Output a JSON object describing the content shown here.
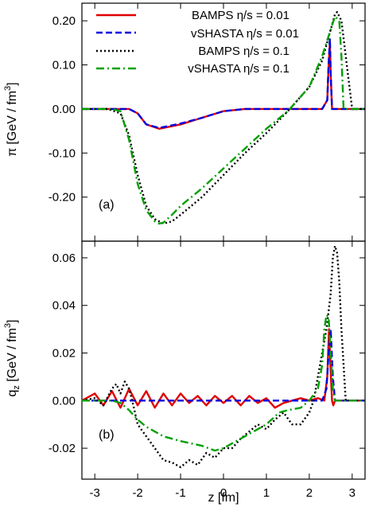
{
  "chart_data": [
    {
      "type": "line",
      "panel_label": "(a)",
      "ylabel_main": "π",
      "ylabel_unit": "[GeV / fm",
      "ylabel_exp": "3",
      "ylabel_close": "]",
      "xlim": [
        -3.3,
        3.3
      ],
      "ylim": [
        -0.3,
        0.24
      ],
      "yticks": [
        0.2,
        0.1,
        0.0,
        -0.1,
        -0.2
      ],
      "ytick_labels": [
        "0.20",
        "0.10",
        "0.00",
        "-0.10",
        "-0.20"
      ],
      "legend_position": "top",
      "grid": false,
      "series": [
        {
          "name": "BAMPS η/s = 0.01",
          "color": "#e00000",
          "dash": "solid",
          "x": [
            -3.3,
            -2.2,
            -2.0,
            -1.8,
            -1.5,
            -1.0,
            -0.5,
            0.0,
            0.5,
            1.0,
            1.5,
            2.0,
            2.3,
            2.42,
            2.45,
            2.48,
            2.5,
            2.53,
            2.6,
            3.3
          ],
          "y": [
            0.0,
            0.0,
            -0.01,
            -0.035,
            -0.045,
            -0.035,
            -0.02,
            -0.005,
            0.0,
            0.0,
            0.0,
            0.0,
            0.0,
            0.02,
            0.1,
            0.15,
            0.08,
            0.0,
            0.0,
            0.0
          ]
        },
        {
          "name": "vSHASTA η/s = 0.01",
          "color": "#0000e0",
          "dash": "dashed",
          "x": [
            -3.3,
            -2.2,
            -2.0,
            -1.8,
            -1.5,
            -1.0,
            -0.5,
            0.0,
            0.5,
            1.0,
            1.5,
            2.0,
            2.3,
            2.42,
            2.45,
            2.48,
            2.5,
            2.53,
            2.6,
            3.3
          ],
          "y": [
            0.0,
            0.0,
            -0.01,
            -0.035,
            -0.043,
            -0.033,
            -0.02,
            -0.005,
            0.0,
            0.0,
            0.0,
            0.0,
            0.0,
            0.02,
            0.1,
            0.16,
            0.08,
            0.0,
            0.0,
            0.0
          ]
        },
        {
          "name": "BAMPS η/s = 0.1",
          "color": "#000000",
          "dash": "dotted",
          "x": [
            -3.3,
            -2.7,
            -2.4,
            -2.2,
            -2.0,
            -1.8,
            -1.6,
            -1.4,
            -1.2,
            -1.0,
            -0.5,
            0.0,
            0.5,
            1.0,
            1.5,
            2.0,
            2.3,
            2.5,
            2.6,
            2.65,
            2.75,
            2.85,
            3.0,
            3.3
          ],
          "y": [
            0.0,
            0.0,
            -0.01,
            -0.06,
            -0.15,
            -0.22,
            -0.25,
            -0.26,
            -0.255,
            -0.24,
            -0.2,
            -0.15,
            -0.1,
            -0.055,
            -0.005,
            0.05,
            0.11,
            0.18,
            0.215,
            0.22,
            0.2,
            0.12,
            0.0,
            0.0
          ]
        },
        {
          "name": "vSHASTA η/s = 0.1",
          "color": "#00a000",
          "dash": "dashdot",
          "x": [
            -3.3,
            -2.6,
            -2.4,
            -2.2,
            -2.0,
            -1.8,
            -1.6,
            -1.5,
            -1.4,
            -1.2,
            -1.0,
            -0.5,
            0.0,
            0.5,
            1.0,
            1.5,
            2.0,
            2.3,
            2.5,
            2.6,
            2.7,
            2.75,
            2.8,
            3.3
          ],
          "y": [
            0.0,
            0.0,
            -0.005,
            -0.07,
            -0.17,
            -0.23,
            -0.255,
            -0.26,
            -0.258,
            -0.24,
            -0.22,
            -0.18,
            -0.135,
            -0.09,
            -0.045,
            -0.005,
            0.05,
            0.12,
            0.18,
            0.21,
            0.2,
            0.12,
            0.0,
            0.0
          ]
        }
      ]
    },
    {
      "type": "line",
      "panel_label": "(b)",
      "ylabel_main": "q",
      "ylabel_sub": "z",
      "ylabel_unit": " [GeV / fm",
      "ylabel_exp": "3",
      "ylabel_close": "]",
      "xlabel": "z [fm]",
      "xlim": [
        -3.3,
        3.3
      ],
      "ylim": [
        -0.033,
        0.067
      ],
      "xticks": [
        -3,
        -2,
        -1,
        0,
        1,
        2,
        3
      ],
      "xtick_labels": [
        "-3",
        "-2",
        "-1",
        "0",
        "1",
        "2",
        "3"
      ],
      "yticks": [
        0.06,
        0.04,
        0.02,
        0.0,
        -0.02
      ],
      "ytick_labels": [
        "0.06",
        "0.04",
        "0.02",
        "0.00",
        "-0.02"
      ],
      "grid": false,
      "series": [
        {
          "name": "BAMPS η/s = 0.01",
          "color": "#e00000",
          "dash": "solid",
          "x": [
            -3.3,
            -3.0,
            -2.8,
            -2.6,
            -2.4,
            -2.2,
            -2.0,
            -1.8,
            -1.6,
            -1.4,
            -1.2,
            -1.0,
            -0.8,
            -0.6,
            -0.4,
            -0.2,
            0.0,
            0.2,
            0.4,
            0.6,
            0.8,
            1.0,
            1.2,
            1.4,
            1.6,
            1.8,
            2.0,
            2.2,
            2.35,
            2.42,
            2.46,
            2.5,
            2.53,
            2.56,
            2.6,
            2.8,
            3.0,
            3.3
          ],
          "y": [
            0.0,
            0.003,
            -0.002,
            0.004,
            -0.003,
            0.005,
            -0.002,
            0.004,
            -0.003,
            0.003,
            -0.002,
            0.003,
            -0.001,
            0.002,
            -0.002,
            0.002,
            -0.001,
            0.002,
            -0.002,
            0.002,
            -0.001,
            0.001,
            -0.003,
            -0.001,
            0.0,
            0.001,
            0.0,
            0.001,
            0.0,
            0.01,
            0.03,
            0.012,
            0.0,
            -0.002,
            0.0,
            0.0,
            0.0,
            0.0
          ]
        },
        {
          "name": "vSHASTA η/s = 0.01",
          "color": "#0000e0",
          "dash": "dashed",
          "x": [
            -3.3,
            -2.0,
            -1.0,
            0.0,
            1.0,
            1.5,
            2.0,
            2.3,
            2.4,
            2.45,
            2.5,
            2.55,
            2.6,
            3.3
          ],
          "y": [
            0.0,
            0.0,
            0.0,
            0.0,
            0.0,
            0.0,
            0.0,
            0.0,
            0.005,
            0.02,
            0.03,
            0.01,
            0.0,
            0.0
          ]
        },
        {
          "name": "BAMPS η/s = 0.1",
          "color": "#000000",
          "dash": "dotted",
          "x": [
            -3.3,
            -3.0,
            -2.8,
            -2.6,
            -2.5,
            -2.4,
            -2.3,
            -2.2,
            -2.1,
            -2.0,
            -1.8,
            -1.6,
            -1.4,
            -1.2,
            -1.0,
            -0.8,
            -0.6,
            -0.4,
            -0.2,
            0.0,
            0.2,
            0.4,
            0.6,
            0.8,
            1.0,
            1.2,
            1.4,
            1.6,
            1.8,
            2.0,
            2.1,
            2.2,
            2.3,
            2.4,
            2.5,
            2.55,
            2.6,
            2.65,
            2.7,
            2.75,
            2.85,
            3.0,
            3.3
          ],
          "y": [
            0.0,
            0.001,
            -0.002,
            0.005,
            0.007,
            0.003,
            0.008,
            0.005,
            -0.002,
            -0.01,
            -0.015,
            -0.02,
            -0.025,
            -0.026,
            -0.028,
            -0.025,
            -0.027,
            -0.022,
            -0.024,
            -0.02,
            -0.02,
            -0.016,
            -0.013,
            -0.01,
            -0.012,
            -0.008,
            -0.005,
            -0.01,
            -0.01,
            -0.005,
            0.0,
            0.01,
            0.02,
            0.03,
            0.045,
            0.06,
            0.065,
            0.062,
            0.05,
            0.03,
            0.0,
            0.0,
            0.0
          ]
        },
        {
          "name": "vSHASTA η/s = 0.1",
          "color": "#00a000",
          "dash": "dashdot",
          "x": [
            -3.3,
            -2.6,
            -2.4,
            -2.2,
            -2.0,
            -1.8,
            -1.6,
            -1.4,
            -1.0,
            -0.5,
            -0.2,
            0.0,
            0.5,
            1.0,
            1.3,
            1.5,
            1.8,
            2.0,
            2.2,
            2.3,
            2.35,
            2.4,
            2.45,
            2.5,
            2.55,
            2.6,
            3.3
          ],
          "y": [
            0.0,
            0.0,
            -0.001,
            -0.004,
            -0.008,
            -0.011,
            -0.013,
            -0.015,
            -0.017,
            -0.019,
            -0.021,
            -0.02,
            -0.015,
            -0.01,
            -0.005,
            -0.004,
            -0.003,
            0.0,
            0.005,
            0.015,
            0.03,
            0.036,
            0.035,
            0.02,
            0.005,
            0.0,
            0.0
          ]
        }
      ]
    }
  ]
}
